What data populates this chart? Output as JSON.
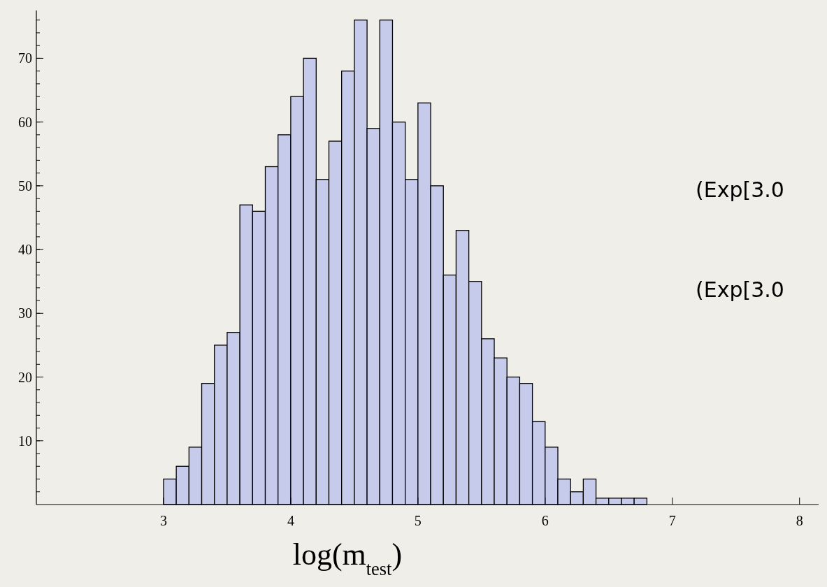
{
  "chart_data": {
    "type": "histogram",
    "xlabel": "log(m$_{test}$)",
    "bins": [
      3.0,
      3.1,
      3.2,
      3.3,
      3.4,
      3.5,
      3.6,
      3.7,
      3.8,
      3.9,
      4.0,
      4.1,
      4.2,
      4.3,
      4.4,
      4.5,
      4.6,
      4.7,
      4.8,
      4.9,
      5.0,
      5.1,
      5.2,
      5.3,
      5.4,
      5.5,
      5.6,
      5.7,
      5.8,
      5.9,
      6.0,
      6.1,
      6.2,
      6.3,
      6.4,
      6.5,
      6.6,
      6.7,
      6.8
    ],
    "values": [
      4,
      6,
      9,
      19,
      25,
      27,
      47,
      46,
      53,
      58,
      64,
      70,
      51,
      57,
      68,
      76,
      59,
      76,
      60,
      51,
      63,
      50,
      36,
      43,
      35,
      26,
      23,
      20,
      19,
      13,
      9,
      4,
      2,
      4,
      1,
      1,
      1,
      1
    ],
    "color": "#c6cbec",
    "xlim": [
      2,
      8.15
    ],
    "xticks": [
      3,
      4,
      5,
      6,
      7,
      8
    ],
    "ylim": [
      0,
      77.5
    ],
    "yticks": [
      10,
      20,
      30,
      40,
      50,
      60,
      70
    ],
    "annotations": [
      "(Exp[3.0",
      "(Exp[3.0"
    ],
    "grid": false
  }
}
